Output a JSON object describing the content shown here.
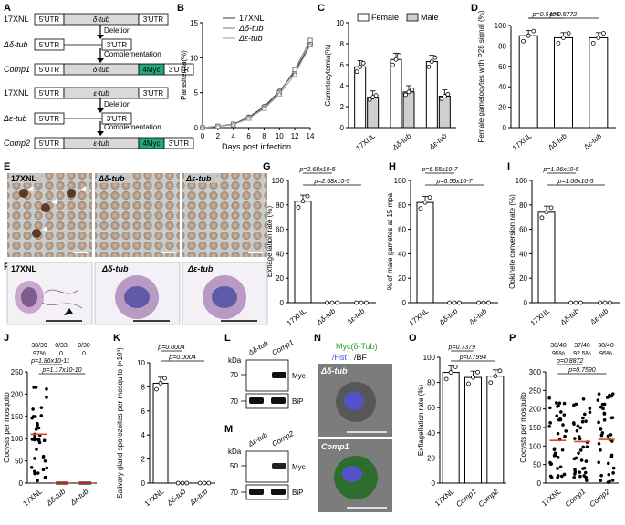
{
  "panels": {
    "A": {
      "letter": "A",
      "rows": [
        {
          "strain": "17XNL",
          "utr5": "5'UTR",
          "gene": "δ-tub",
          "utr3": "3'UTR",
          "tag": ""
        },
        {
          "strain": "Δδ-tub",
          "utr5": "5'UTR",
          "gene": "",
          "utr3": "3'UTR",
          "tag": ""
        },
        {
          "strain": "Comp1",
          "utr5": "5'UTR",
          "gene": "δ-tub",
          "utr3": "3'UTR",
          "tag": "4Myc"
        },
        {
          "strain": "17XNL",
          "utr5": "5'UTR",
          "gene": "ε-tub",
          "utr3": "3'UTR",
          "tag": ""
        },
        {
          "strain": "Δε-tub",
          "utr5": "5'UTR",
          "gene": "",
          "utr3": "3'UTR",
          "tag": ""
        },
        {
          "strain": "Comp2",
          "utr5": "5'UTR",
          "gene": "ε-tub",
          "utr3": "3'UTR",
          "tag": "4Myc"
        }
      ],
      "arrow1": "Deletion",
      "arrow2": "Complementation"
    },
    "B": {
      "letter": "B"
    },
    "C": {
      "letter": "C"
    },
    "D": {
      "letter": "D"
    },
    "E": {
      "letter": "E",
      "labels": [
        "17XNL",
        "Δδ-tub",
        "Δε-tub"
      ]
    },
    "F": {
      "letter": "F",
      "labels": [
        "17XNL",
        "Δδ-tub",
        "Δε-tub"
      ]
    },
    "G": {
      "letter": "G"
    },
    "H": {
      "letter": "H"
    },
    "I": {
      "letter": "I"
    },
    "J": {
      "letter": "J",
      "header_counts": [
        "38/39",
        "0/33",
        "0/30"
      ],
      "header_pct": [
        "97%",
        "0",
        "0"
      ]
    },
    "K": {
      "letter": "K"
    },
    "L": {
      "letter": "L",
      "lanes": [
        "Δδ-tub",
        "Comp1"
      ],
      "kda": "kDa",
      "markers": [
        "70",
        "70"
      ],
      "bands": [
        "Myc",
        "BiP"
      ]
    },
    "M": {
      "letter": "M",
      "lanes": [
        "Δε-tub",
        "Comp2"
      ],
      "kda": "kDa",
      "markers": [
        "50",
        "70"
      ],
      "bands": [
        "Myc",
        "BiP"
      ]
    },
    "N": {
      "letter": "N",
      "legend_myc": "Myc(δ-Tub)",
      "legend_hst": "/Hst",
      "legend_bf": "/BF",
      "img_labels": [
        "Δδ-tub",
        "Comp1"
      ]
    },
    "O": {
      "letter": "O"
    },
    "P": {
      "letter": "P",
      "header_counts": [
        "38/40",
        "37/40",
        "38/40"
      ],
      "header_pct": [
        "95%",
        "92.5%",
        "95%"
      ]
    }
  },
  "chart_data": [
    {
      "id": "B",
      "type": "line",
      "xlabel": "Days post infection",
      "ylabel": "Parasitemia(%)",
      "x": [
        0,
        2,
        4,
        6,
        8,
        10,
        12,
        14
      ],
      "xlim": [
        0,
        14
      ],
      "ylim": [
        0,
        15
      ],
      "yticks": [
        0,
        5,
        10,
        15
      ],
      "series": [
        {
          "name": "17XNL",
          "marker": "circle",
          "values": [
            0,
            0.2,
            0.5,
            1.5,
            3,
            5.2,
            8,
            12
          ]
        },
        {
          "name": "Δδ-tub",
          "marker": "square",
          "values": [
            0,
            0.2,
            0.5,
            1.4,
            2.8,
            5.0,
            8.3,
            12.5
          ]
        },
        {
          "name": "Δε-tub",
          "marker": "triangle",
          "values": [
            0,
            0.2,
            0.4,
            1.3,
            2.7,
            4.8,
            7.6,
            11.8
          ]
        }
      ]
    },
    {
      "id": "C",
      "type": "bar",
      "ylabel": "Gametocytemia(%)",
      "ylim": [
        0,
        10
      ],
      "yticks": [
        0,
        2,
        4,
        6,
        8,
        10
      ],
      "categories": [
        "17XNL",
        "Δδ-tub",
        "Δε-tub"
      ],
      "series": [
        {
          "name": "Female",
          "values": [
            5.8,
            6.5,
            6.3
          ]
        },
        {
          "name": "Male",
          "values": [
            2.9,
            3.4,
            3.0
          ]
        }
      ]
    },
    {
      "id": "D",
      "type": "bar",
      "ylabel": "Female gametocytes with P28 signal (%)",
      "ylim": [
        0,
        100
      ],
      "yticks": [
        0,
        20,
        40,
        60,
        80,
        100
      ],
      "categories": [
        "17XNL",
        "Δδ-tub",
        "Δε-tub"
      ],
      "values": [
        90,
        88,
        88
      ],
      "annotations": [
        "p=0.5406",
        "p=0.5772"
      ]
    },
    {
      "id": "G",
      "type": "bar",
      "ylabel": "Exflagellation rate (%)",
      "ylim": [
        0,
        100
      ],
      "yticks": [
        0,
        20,
        40,
        60,
        80,
        100
      ],
      "categories": [
        "17XNL",
        "Δδ-tub",
        "Δε-tub"
      ],
      "values": [
        83,
        0,
        0
      ],
      "annotations": [
        "p=2.68x10-5",
        "p=2.68x10-5"
      ]
    },
    {
      "id": "H",
      "type": "bar",
      "ylabel": "% of male gametes at 15 mpa",
      "ylim": [
        0,
        100
      ],
      "yticks": [
        0,
        20,
        40,
        60,
        80,
        100
      ],
      "categories": [
        "17XNL",
        "Δδ-tub",
        "Δε-tub"
      ],
      "values": [
        82,
        0,
        0
      ],
      "annotations": [
        "p=6.55x10-7",
        "p=6.55x10-7"
      ]
    },
    {
      "id": "I",
      "type": "bar",
      "ylabel": "Ookinete conversion rate (%)",
      "ylim": [
        0,
        100
      ],
      "yticks": [
        0,
        20,
        40,
        60,
        80,
        100
      ],
      "categories": [
        "17XNL",
        "Δδ-tub",
        "Δε-tub"
      ],
      "values": [
        74,
        0,
        0
      ],
      "annotations": [
        "p=1.06x10-5",
        "p=1.06x10-5"
      ]
    },
    {
      "id": "J",
      "type": "scatter",
      "ylabel": "Oocysts per mosquito",
      "ylim": [
        0,
        250
      ],
      "yticks": [
        0,
        50,
        100,
        150,
        200,
        250
      ],
      "categories": [
        "17XNL",
        "Δδ-tub",
        "Δε-tub"
      ],
      "medians": [
        110,
        0,
        0
      ],
      "annotations": [
        "p=1.86x10-11",
        "p=1.17x10-10"
      ]
    },
    {
      "id": "K",
      "type": "bar",
      "ylabel": "Salivary gland sporozoites per mosquito (×10³)",
      "ylim": [
        0,
        10
      ],
      "yticks": [
        0,
        2,
        4,
        6,
        8,
        10
      ],
      "categories": [
        "17XNL",
        "Δδ-tub",
        "Δε-tub"
      ],
      "values": [
        8.3,
        0,
        0
      ],
      "annotations": [
        "p=0.0004",
        "p=0.0004"
      ]
    },
    {
      "id": "O",
      "type": "bar",
      "ylabel": "Exflagellation rate (%)",
      "ylim": [
        0,
        100
      ],
      "yticks": [
        0,
        20,
        40,
        60,
        80,
        100
      ],
      "categories": [
        "17XNL",
        "Comp1",
        "Comp2"
      ],
      "values": [
        88,
        84,
        85
      ],
      "annotations": [
        "p=0.7379",
        "p=0.7994"
      ]
    },
    {
      "id": "P",
      "type": "scatter",
      "ylabel": "Oocysts per mosquito",
      "ylim": [
        0,
        300
      ],
      "yticks": [
        0,
        50,
        100,
        150,
        200,
        250,
        300
      ],
      "categories": [
        "17XNL",
        "Comp1",
        "Comp2"
      ],
      "medians": [
        115,
        112,
        118
      ],
      "annotations": [
        "p=0.8872",
        "p=0.7590"
      ]
    }
  ]
}
